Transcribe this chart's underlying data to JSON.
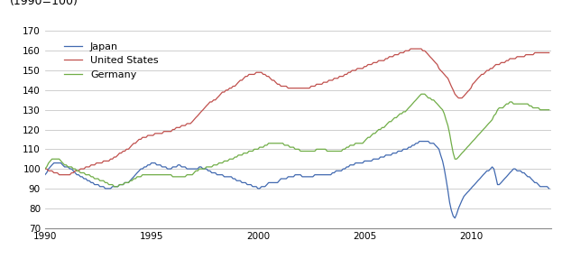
{
  "title_label": "(1990=100)",
  "ylim": [
    70,
    170
  ],
  "xlim": [
    1990.0,
    2013.75
  ],
  "yticks": [
    70,
    80,
    90,
    100,
    110,
    120,
    130,
    140,
    150,
    160,
    170
  ],
  "xticks": [
    1990,
    1995,
    2000,
    2005,
    2010
  ],
  "line_colors": {
    "Japan": "#4169b0",
    "United States": "#c0504d",
    "Germany": "#70ad47"
  },
  "background_color": "#ffffff",
  "grid_color": "#c8c8c8",
  "japan": [
    1990.0,
    97,
    1990.08,
    98,
    1990.17,
    100,
    1990.25,
    101,
    1990.33,
    102,
    1990.42,
    103,
    1990.5,
    103,
    1990.58,
    103,
    1990.67,
    103,
    1990.75,
    103,
    1990.83,
    102,
    1990.92,
    101,
    1991.0,
    101,
    1991.08,
    101,
    1991.17,
    100,
    1991.25,
    100,
    1991.33,
    99,
    1991.42,
    98,
    1991.5,
    97,
    1991.58,
    97,
    1991.67,
    96,
    1991.75,
    96,
    1991.83,
    95,
    1991.92,
    95,
    1992.0,
    94,
    1992.08,
    94,
    1992.17,
    93,
    1992.25,
    93,
    1992.33,
    92,
    1992.42,
    92,
    1992.5,
    92,
    1992.58,
    91,
    1992.67,
    91,
    1992.75,
    91,
    1992.83,
    90,
    1992.92,
    90,
    1993.0,
    90,
    1993.08,
    90,
    1993.17,
    91,
    1993.25,
    91,
    1993.33,
    91,
    1993.42,
    91,
    1993.5,
    92,
    1993.58,
    92,
    1993.67,
    92,
    1993.75,
    93,
    1993.83,
    93,
    1993.92,
    93,
    1994.0,
    94,
    1994.08,
    95,
    1994.17,
    96,
    1994.25,
    97,
    1994.33,
    98,
    1994.42,
    99,
    1994.5,
    100,
    1994.58,
    100,
    1994.67,
    101,
    1994.75,
    101,
    1994.83,
    102,
    1994.92,
    102,
    1995.0,
    103,
    1995.08,
    103,
    1995.17,
    103,
    1995.25,
    102,
    1995.33,
    102,
    1995.42,
    102,
    1995.5,
    101,
    1995.58,
    101,
    1995.67,
    101,
    1995.75,
    100,
    1995.83,
    100,
    1995.92,
    100,
    1996.0,
    101,
    1996.08,
    101,
    1996.17,
    101,
    1996.25,
    102,
    1996.33,
    102,
    1996.42,
    101,
    1996.5,
    101,
    1996.58,
    101,
    1996.67,
    100,
    1996.75,
    100,
    1996.83,
    100,
    1996.92,
    100,
    1997.0,
    100,
    1997.08,
    100,
    1997.17,
    100,
    1997.25,
    101,
    1997.33,
    101,
    1997.42,
    100,
    1997.5,
    100,
    1997.58,
    100,
    1997.67,
    99,
    1997.75,
    99,
    1997.83,
    98,
    1997.92,
    98,
    1998.0,
    98,
    1998.08,
    97,
    1998.17,
    97,
    1998.25,
    97,
    1998.33,
    97,
    1998.42,
    96,
    1998.5,
    96,
    1998.58,
    96,
    1998.67,
    96,
    1998.75,
    96,
    1998.83,
    95,
    1998.92,
    95,
    1999.0,
    94,
    1999.08,
    94,
    1999.17,
    94,
    1999.25,
    93,
    1999.33,
    93,
    1999.42,
    93,
    1999.5,
    92,
    1999.58,
    92,
    1999.67,
    92,
    1999.75,
    91,
    1999.83,
    91,
    1999.92,
    91,
    2000.0,
    90,
    2000.08,
    90,
    2000.17,
    91,
    2000.25,
    91,
    2000.33,
    91,
    2000.42,
    92,
    2000.5,
    93,
    2000.58,
    93,
    2000.67,
    93,
    2000.75,
    93,
    2000.83,
    93,
    2000.92,
    93,
    2001.0,
    94,
    2001.08,
    95,
    2001.17,
    95,
    2001.25,
    95,
    2001.33,
    95,
    2001.42,
    96,
    2001.5,
    96,
    2001.58,
    96,
    2001.67,
    96,
    2001.75,
    97,
    2001.83,
    97,
    2001.92,
    97,
    2002.0,
    97,
    2002.08,
    96,
    2002.17,
    96,
    2002.25,
    96,
    2002.33,
    96,
    2002.42,
    96,
    2002.5,
    96,
    2002.58,
    96,
    2002.67,
    97,
    2002.75,
    97,
    2002.83,
    97,
    2002.92,
    97,
    2003.0,
    97,
    2003.08,
    97,
    2003.17,
    97,
    2003.25,
    97,
    2003.33,
    97,
    2003.42,
    97,
    2003.5,
    98,
    2003.58,
    98,
    2003.67,
    99,
    2003.75,
    99,
    2003.83,
    99,
    2003.92,
    99,
    2004.0,
    100,
    2004.08,
    100,
    2004.17,
    101,
    2004.25,
    101,
    2004.33,
    102,
    2004.42,
    102,
    2004.5,
    102,
    2004.58,
    103,
    2004.67,
    103,
    2004.75,
    103,
    2004.83,
    103,
    2004.92,
    103,
    2005.0,
    104,
    2005.08,
    104,
    2005.17,
    104,
    2005.25,
    104,
    2005.33,
    104,
    2005.42,
    105,
    2005.5,
    105,
    2005.58,
    105,
    2005.67,
    105,
    2005.75,
    106,
    2005.83,
    106,
    2005.92,
    106,
    2006.0,
    107,
    2006.08,
    107,
    2006.17,
    107,
    2006.25,
    107,
    2006.33,
    108,
    2006.42,
    108,
    2006.5,
    108,
    2006.58,
    109,
    2006.67,
    109,
    2006.75,
    109,
    2006.83,
    110,
    2006.92,
    110,
    2007.0,
    110,
    2007.08,
    111,
    2007.17,
    111,
    2007.25,
    112,
    2007.33,
    112,
    2007.42,
    113,
    2007.5,
    113,
    2007.58,
    114,
    2007.67,
    114,
    2007.75,
    114,
    2007.83,
    114,
    2007.92,
    114,
    2008.0,
    114,
    2008.08,
    113,
    2008.17,
    113,
    2008.25,
    113,
    2008.33,
    112,
    2008.42,
    111,
    2008.5,
    110,
    2008.58,
    107,
    2008.67,
    104,
    2008.75,
    100,
    2008.83,
    95,
    2008.92,
    89,
    2009.0,
    83,
    2009.08,
    79,
    2009.17,
    76,
    2009.25,
    75,
    2009.33,
    77,
    2009.42,
    80,
    2009.5,
    82,
    2009.58,
    84,
    2009.67,
    86,
    2009.75,
    87,
    2009.83,
    88,
    2009.92,
    89,
    2010.0,
    90,
    2010.08,
    91,
    2010.17,
    92,
    2010.25,
    93,
    2010.33,
    94,
    2010.42,
    95,
    2010.5,
    96,
    2010.58,
    97,
    2010.67,
    98,
    2010.75,
    99,
    2010.83,
    99,
    2010.92,
    100,
    2011.0,
    101,
    2011.08,
    100,
    2011.17,
    96,
    2011.25,
    92,
    2011.33,
    92,
    2011.42,
    93,
    2011.5,
    94,
    2011.58,
    95,
    2011.67,
    96,
    2011.75,
    97,
    2011.83,
    98,
    2011.92,
    99,
    2012.0,
    100,
    2012.08,
    100,
    2012.17,
    99,
    2012.25,
    99,
    2012.33,
    99,
    2012.42,
    98,
    2012.5,
    98,
    2012.58,
    97,
    2012.67,
    96,
    2012.75,
    96,
    2012.83,
    95,
    2012.92,
    94,
    2013.0,
    93,
    2013.08,
    93,
    2013.17,
    92,
    2013.25,
    91,
    2013.33,
    91,
    2013.42,
    91,
    2013.5,
    91,
    2013.58,
    91,
    2013.67,
    90
  ],
  "us": [
    1990.0,
    100,
    1990.08,
    100,
    1990.17,
    99,
    1990.25,
    99,
    1990.33,
    99,
    1990.42,
    98,
    1990.5,
    98,
    1990.58,
    98,
    1990.67,
    97,
    1990.75,
    97,
    1990.83,
    97,
    1990.92,
    97,
    1991.0,
    97,
    1991.08,
    97,
    1991.17,
    97,
    1991.25,
    98,
    1991.33,
    98,
    1991.42,
    99,
    1991.5,
    99,
    1991.58,
    99,
    1991.67,
    100,
    1991.75,
    100,
    1991.83,
    100,
    1991.92,
    101,
    1992.0,
    101,
    1992.08,
    101,
    1992.17,
    102,
    1992.25,
    102,
    1992.33,
    102,
    1992.42,
    103,
    1992.5,
    103,
    1992.58,
    103,
    1992.67,
    103,
    1992.75,
    104,
    1992.83,
    104,
    1992.92,
    104,
    1993.0,
    104,
    1993.08,
    105,
    1993.17,
    105,
    1993.25,
    106,
    1993.33,
    106,
    1993.42,
    107,
    1993.5,
    108,
    1993.58,
    108,
    1993.67,
    109,
    1993.75,
    109,
    1993.83,
    110,
    1993.92,
    110,
    1994.0,
    111,
    1994.08,
    112,
    1994.17,
    113,
    1994.25,
    113,
    1994.33,
    114,
    1994.42,
    115,
    1994.5,
    115,
    1994.58,
    116,
    1994.67,
    116,
    1994.75,
    116,
    1994.83,
    117,
    1994.92,
    117,
    1995.0,
    117,
    1995.08,
    117,
    1995.17,
    118,
    1995.25,
    118,
    1995.33,
    118,
    1995.42,
    118,
    1995.5,
    118,
    1995.58,
    119,
    1995.67,
    119,
    1995.75,
    119,
    1995.83,
    119,
    1995.92,
    119,
    1996.0,
    120,
    1996.08,
    120,
    1996.17,
    121,
    1996.25,
    121,
    1996.33,
    121,
    1996.42,
    122,
    1996.5,
    122,
    1996.58,
    122,
    1996.67,
    123,
    1996.75,
    123,
    1996.83,
    123,
    1996.92,
    124,
    1997.0,
    125,
    1997.08,
    126,
    1997.17,
    127,
    1997.25,
    128,
    1997.33,
    129,
    1997.42,
    130,
    1997.5,
    131,
    1997.58,
    132,
    1997.67,
    133,
    1997.75,
    134,
    1997.83,
    134,
    1997.92,
    135,
    1998.0,
    135,
    1998.08,
    136,
    1998.17,
    137,
    1998.25,
    138,
    1998.33,
    139,
    1998.42,
    139,
    1998.5,
    140,
    1998.58,
    140,
    1998.67,
    141,
    1998.75,
    141,
    1998.83,
    142,
    1998.92,
    142,
    1999.0,
    143,
    1999.08,
    144,
    1999.17,
    145,
    1999.25,
    145,
    1999.33,
    146,
    1999.42,
    147,
    1999.5,
    147,
    1999.58,
    148,
    1999.67,
    148,
    1999.75,
    148,
    1999.83,
    148,
    1999.92,
    149,
    2000.0,
    149,
    2000.08,
    149,
    2000.17,
    149,
    2000.25,
    148,
    2000.33,
    148,
    2000.42,
    147,
    2000.5,
    147,
    2000.58,
    146,
    2000.67,
    145,
    2000.75,
    145,
    2000.83,
    144,
    2000.92,
    143,
    2001.0,
    143,
    2001.08,
    142,
    2001.17,
    142,
    2001.25,
    142,
    2001.33,
    142,
    2001.42,
    141,
    2001.5,
    141,
    2001.58,
    141,
    2001.67,
    141,
    2001.75,
    141,
    2001.83,
    141,
    2001.92,
    141,
    2002.0,
    141,
    2002.08,
    141,
    2002.17,
    141,
    2002.25,
    141,
    2002.33,
    141,
    2002.42,
    141,
    2002.5,
    142,
    2002.58,
    142,
    2002.67,
    142,
    2002.75,
    143,
    2002.83,
    143,
    2002.92,
    143,
    2003.0,
    143,
    2003.08,
    144,
    2003.17,
    144,
    2003.25,
    144,
    2003.33,
    145,
    2003.42,
    145,
    2003.5,
    145,
    2003.58,
    146,
    2003.67,
    146,
    2003.75,
    146,
    2003.83,
    147,
    2003.92,
    147,
    2004.0,
    147,
    2004.08,
    148,
    2004.17,
    148,
    2004.25,
    149,
    2004.33,
    149,
    2004.42,
    150,
    2004.5,
    150,
    2004.58,
    150,
    2004.67,
    151,
    2004.75,
    151,
    2004.83,
    151,
    2004.92,
    151,
    2005.0,
    152,
    2005.08,
    152,
    2005.17,
    153,
    2005.25,
    153,
    2005.33,
    153,
    2005.42,
    154,
    2005.5,
    154,
    2005.58,
    154,
    2005.67,
    155,
    2005.75,
    155,
    2005.83,
    155,
    2005.92,
    155,
    2006.0,
    156,
    2006.08,
    156,
    2006.17,
    157,
    2006.25,
    157,
    2006.33,
    157,
    2006.42,
    158,
    2006.5,
    158,
    2006.58,
    158,
    2006.67,
    159,
    2006.75,
    159,
    2006.83,
    159,
    2006.92,
    160,
    2007.0,
    160,
    2007.08,
    160,
    2007.17,
    161,
    2007.25,
    161,
    2007.33,
    161,
    2007.42,
    161,
    2007.5,
    161,
    2007.58,
    161,
    2007.67,
    161,
    2007.75,
    160,
    2007.83,
    160,
    2007.92,
    159,
    2008.0,
    158,
    2008.08,
    157,
    2008.17,
    156,
    2008.25,
    155,
    2008.33,
    154,
    2008.42,
    153,
    2008.5,
    151,
    2008.58,
    150,
    2008.67,
    149,
    2008.75,
    148,
    2008.83,
    147,
    2008.92,
    146,
    2009.0,
    144,
    2009.08,
    142,
    2009.17,
    140,
    2009.25,
    138,
    2009.33,
    137,
    2009.42,
    136,
    2009.5,
    136,
    2009.58,
    136,
    2009.67,
    137,
    2009.75,
    138,
    2009.83,
    139,
    2009.92,
    140,
    2010.0,
    141,
    2010.08,
    143,
    2010.17,
    144,
    2010.25,
    145,
    2010.33,
    146,
    2010.42,
    147,
    2010.5,
    148,
    2010.58,
    148,
    2010.67,
    149,
    2010.75,
    150,
    2010.83,
    150,
    2010.92,
    151,
    2011.0,
    151,
    2011.08,
    152,
    2011.17,
    153,
    2011.25,
    153,
    2011.33,
    153,
    2011.42,
    154,
    2011.5,
    154,
    2011.58,
    154,
    2011.67,
    155,
    2011.75,
    155,
    2011.83,
    156,
    2011.92,
    156,
    2012.0,
    156,
    2012.08,
    156,
    2012.17,
    157,
    2012.25,
    157,
    2012.33,
    157,
    2012.42,
    157,
    2012.5,
    157,
    2012.58,
    158,
    2012.67,
    158,
    2012.75,
    158,
    2012.83,
    158,
    2012.92,
    158,
    2013.0,
    159,
    2013.08,
    159,
    2013.17,
    159,
    2013.25,
    159,
    2013.33,
    159,
    2013.42,
    159,
    2013.5,
    159,
    2013.58,
    159,
    2013.67,
    159
  ],
  "germany": [
    1990.0,
    100,
    1990.08,
    101,
    1990.17,
    103,
    1990.25,
    104,
    1990.33,
    105,
    1990.42,
    105,
    1990.5,
    105,
    1990.58,
    105,
    1990.67,
    105,
    1990.75,
    104,
    1990.83,
    103,
    1990.92,
    102,
    1991.0,
    102,
    1991.08,
    101,
    1991.17,
    101,
    1991.25,
    101,
    1991.33,
    100,
    1991.42,
    100,
    1991.5,
    99,
    1991.58,
    99,
    1991.67,
    98,
    1991.75,
    98,
    1991.83,
    98,
    1991.92,
    97,
    1992.0,
    97,
    1992.08,
    97,
    1992.17,
    96,
    1992.25,
    96,
    1992.33,
    95,
    1992.42,
    95,
    1992.5,
    95,
    1992.58,
    94,
    1992.67,
    94,
    1992.75,
    94,
    1992.83,
    93,
    1992.92,
    93,
    1993.0,
    92,
    1993.08,
    92,
    1993.17,
    92,
    1993.25,
    91,
    1993.33,
    91,
    1993.42,
    91,
    1993.5,
    92,
    1993.58,
    92,
    1993.67,
    92,
    1993.75,
    93,
    1993.83,
    93,
    1993.92,
    93,
    1994.0,
    94,
    1994.08,
    94,
    1994.17,
    95,
    1994.25,
    95,
    1994.33,
    96,
    1994.42,
    96,
    1994.5,
    96,
    1994.58,
    97,
    1994.67,
    97,
    1994.75,
    97,
    1994.83,
    97,
    1994.92,
    97,
    1995.0,
    97,
    1995.08,
    97,
    1995.17,
    97,
    1995.25,
    97,
    1995.33,
    97,
    1995.42,
    97,
    1995.5,
    97,
    1995.58,
    97,
    1995.67,
    97,
    1995.75,
    97,
    1995.83,
    97,
    1995.92,
    97,
    1996.0,
    96,
    1996.08,
    96,
    1996.17,
    96,
    1996.25,
    96,
    1996.33,
    96,
    1996.42,
    96,
    1996.5,
    96,
    1996.58,
    96,
    1996.67,
    97,
    1996.75,
    97,
    1996.83,
    97,
    1996.92,
    97,
    1997.0,
    98,
    1997.08,
    99,
    1997.17,
    99,
    1997.25,
    100,
    1997.33,
    100,
    1997.42,
    100,
    1997.5,
    100,
    1997.58,
    101,
    1997.67,
    101,
    1997.75,
    101,
    1997.83,
    101,
    1997.92,
    102,
    1998.0,
    102,
    1998.08,
    102,
    1998.17,
    103,
    1998.25,
    103,
    1998.33,
    103,
    1998.42,
    104,
    1998.5,
    104,
    1998.58,
    104,
    1998.67,
    105,
    1998.75,
    105,
    1998.83,
    105,
    1998.92,
    106,
    1999.0,
    106,
    1999.08,
    107,
    1999.17,
    107,
    1999.25,
    107,
    1999.33,
    108,
    1999.42,
    108,
    1999.5,
    108,
    1999.58,
    109,
    1999.67,
    109,
    1999.75,
    109,
    1999.83,
    110,
    1999.92,
    110,
    2000.0,
    110,
    2000.08,
    111,
    2000.17,
    111,
    2000.25,
    111,
    2000.33,
    112,
    2000.42,
    112,
    2000.5,
    113,
    2000.58,
    113,
    2000.67,
    113,
    2000.75,
    113,
    2000.83,
    113,
    2000.92,
    113,
    2001.0,
    113,
    2001.08,
    113,
    2001.17,
    113,
    2001.25,
    112,
    2001.33,
    112,
    2001.42,
    112,
    2001.5,
    111,
    2001.58,
    111,
    2001.67,
    111,
    2001.75,
    110,
    2001.83,
    110,
    2001.92,
    110,
    2002.0,
    109,
    2002.08,
    109,
    2002.17,
    109,
    2002.25,
    109,
    2002.33,
    109,
    2002.42,
    109,
    2002.5,
    109,
    2002.58,
    109,
    2002.67,
    109,
    2002.75,
    110,
    2002.83,
    110,
    2002.92,
    110,
    2003.0,
    110,
    2003.08,
    110,
    2003.17,
    110,
    2003.25,
    109,
    2003.33,
    109,
    2003.42,
    109,
    2003.5,
    109,
    2003.58,
    109,
    2003.67,
    109,
    2003.75,
    109,
    2003.83,
    109,
    2003.92,
    109,
    2004.0,
    110,
    2004.08,
    110,
    2004.17,
    111,
    2004.25,
    111,
    2004.33,
    112,
    2004.42,
    112,
    2004.5,
    112,
    2004.58,
    113,
    2004.67,
    113,
    2004.75,
    113,
    2004.83,
    113,
    2004.92,
    113,
    2005.0,
    114,
    2005.08,
    115,
    2005.17,
    116,
    2005.25,
    116,
    2005.33,
    117,
    2005.42,
    118,
    2005.5,
    118,
    2005.58,
    119,
    2005.67,
    120,
    2005.75,
    120,
    2005.83,
    121,
    2005.92,
    121,
    2006.0,
    122,
    2006.08,
    123,
    2006.17,
    124,
    2006.25,
    124,
    2006.33,
    125,
    2006.42,
    126,
    2006.5,
    126,
    2006.58,
    127,
    2006.67,
    128,
    2006.75,
    128,
    2006.83,
    129,
    2006.92,
    129,
    2007.0,
    130,
    2007.08,
    131,
    2007.17,
    132,
    2007.25,
    133,
    2007.33,
    134,
    2007.42,
    135,
    2007.5,
    136,
    2007.58,
    137,
    2007.67,
    138,
    2007.75,
    138,
    2007.83,
    138,
    2007.92,
    137,
    2008.0,
    136,
    2008.08,
    136,
    2008.17,
    135,
    2008.25,
    135,
    2008.33,
    134,
    2008.42,
    133,
    2008.5,
    132,
    2008.58,
    131,
    2008.67,
    130,
    2008.75,
    128,
    2008.83,
    125,
    2008.92,
    122,
    2009.0,
    118,
    2009.08,
    113,
    2009.17,
    108,
    2009.25,
    105,
    2009.33,
    105,
    2009.42,
    106,
    2009.5,
    107,
    2009.58,
    108,
    2009.67,
    109,
    2009.75,
    110,
    2009.83,
    111,
    2009.92,
    112,
    2010.0,
    113,
    2010.08,
    114,
    2010.17,
    115,
    2010.25,
    116,
    2010.33,
    117,
    2010.42,
    118,
    2010.5,
    119,
    2010.58,
    120,
    2010.67,
    121,
    2010.75,
    122,
    2010.83,
    123,
    2010.92,
    124,
    2011.0,
    125,
    2011.08,
    127,
    2011.17,
    128,
    2011.25,
    130,
    2011.33,
    131,
    2011.42,
    131,
    2011.5,
    131,
    2011.58,
    132,
    2011.67,
    133,
    2011.75,
    133,
    2011.83,
    134,
    2011.92,
    134,
    2012.0,
    133,
    2012.08,
    133,
    2012.17,
    133,
    2012.25,
    133,
    2012.33,
    133,
    2012.42,
    133,
    2012.5,
    133,
    2012.58,
    133,
    2012.67,
    133,
    2012.75,
    132,
    2012.83,
    132,
    2012.92,
    131,
    2013.0,
    131,
    2013.08,
    131,
    2013.17,
    131,
    2013.25,
    130,
    2013.33,
    130,
    2013.42,
    130,
    2013.5,
    130,
    2013.58,
    130,
    2013.67,
    130
  ]
}
